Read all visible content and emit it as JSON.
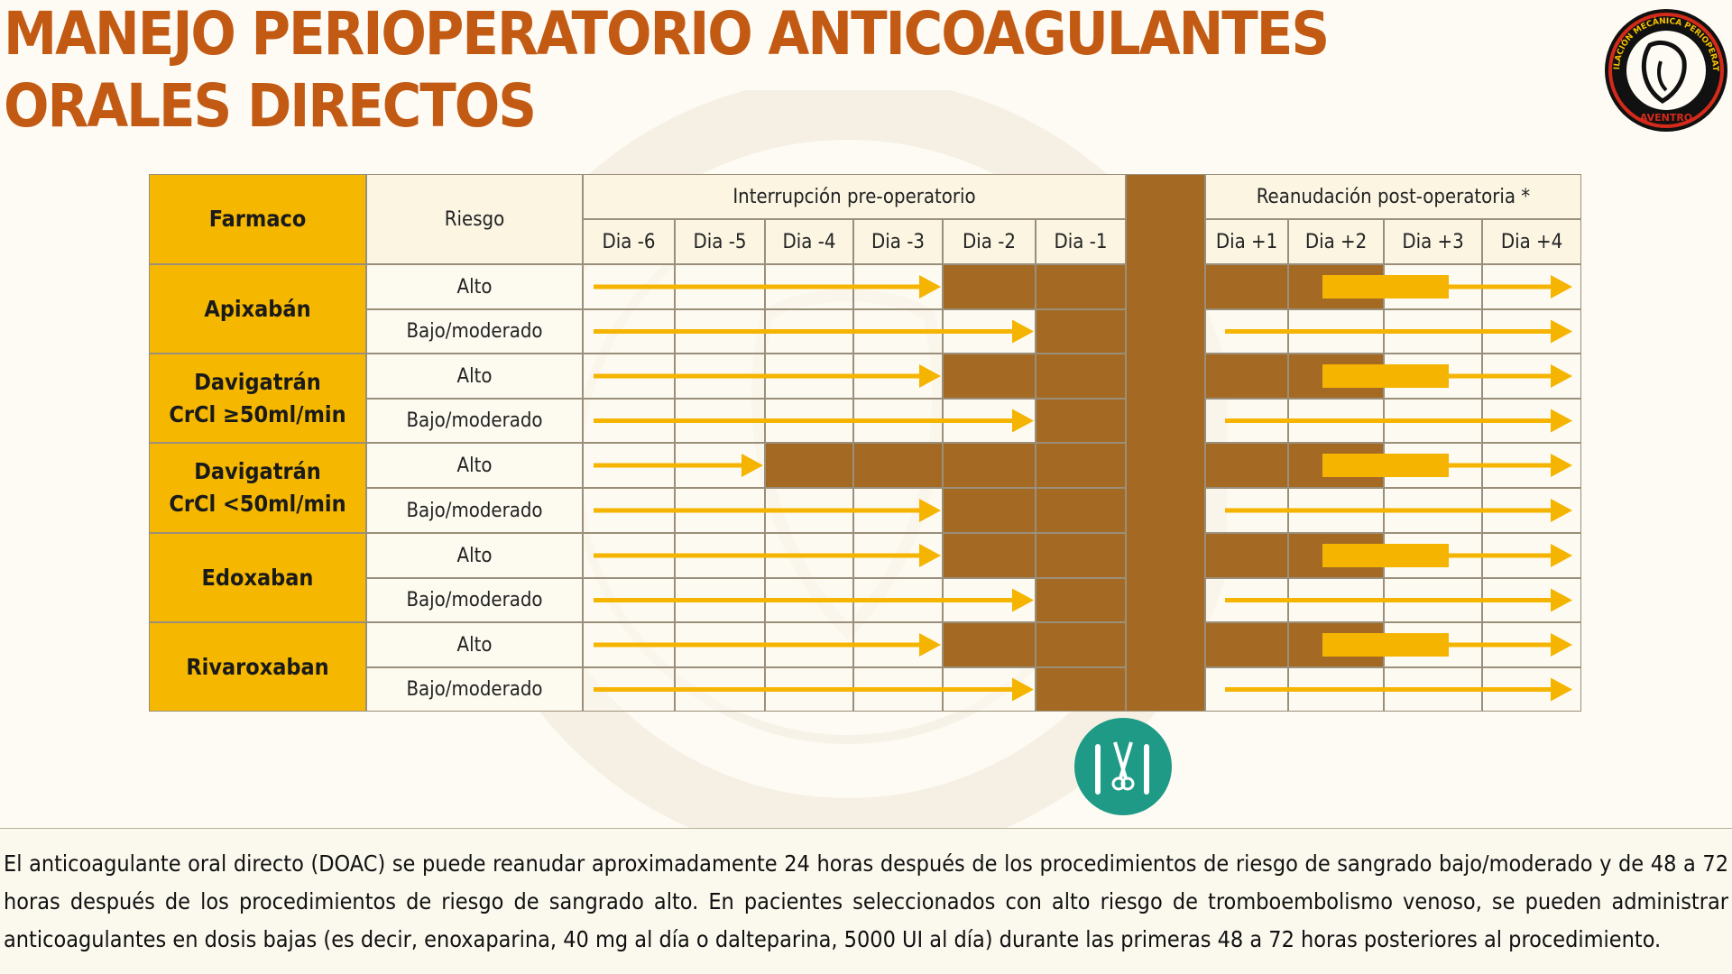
{
  "title": "MANEJO PERIOPERATORIO ANTICOAGULANTES ORALES DIRECTOS",
  "logo": {
    "text_ring": "VENTILACIÓN MECÁNICA PERIOPERATORIA",
    "text_bottom": "AVENTRO",
    "icon": "lungs-head-logo-icon"
  },
  "table": {
    "header": {
      "farmaco": "Farmaco",
      "riesgo": "Riesgo",
      "pre_group": "Interrupción pre-operatorio",
      "post_group": "Reanudación post-operatoria *",
      "pre_days": [
        "Dia -6",
        "Dia -5",
        "Dia -4",
        "Dia -3",
        "Dia -2",
        "Dia -1"
      ],
      "post_days": [
        "Dia +1",
        "Dia +2",
        "Dia +3",
        "Dia +4"
      ]
    },
    "drugs": [
      {
        "name_line1": "Apixabán",
        "name_line2": "",
        "underline_prefix": "",
        "rows": [
          {
            "risk": "Alto",
            "stop_days": 2,
            "resume_delay_days": 2
          },
          {
            "risk": "Bajo/moderado",
            "stop_days": 1,
            "resume_delay_days": 1
          }
        ]
      },
      {
        "name_line1": "Davigatrán",
        "name_line2": "CrCl ≥50ml/min",
        "underline_prefix": "CrCl ",
        "rows": [
          {
            "risk": "Alto",
            "stop_days": 2,
            "resume_delay_days": 2
          },
          {
            "risk": "Bajo/moderado",
            "stop_days": 1,
            "resume_delay_days": 1
          }
        ]
      },
      {
        "name_line1": "Davigatrán",
        "name_line2": "CrCl <50ml/min",
        "underline_prefix": "",
        "rows": [
          {
            "risk": "Alto",
            "stop_days": 4,
            "resume_delay_days": 2
          },
          {
            "risk": "Bajo/moderado",
            "stop_days": 2,
            "resume_delay_days": 1
          }
        ]
      },
      {
        "name_line1": "Edoxaban",
        "name_line2": "",
        "underline_prefix": "",
        "rows": [
          {
            "risk": "Alto",
            "stop_days": 2,
            "resume_delay_days": 2
          },
          {
            "risk": "Bajo/moderado",
            "stop_days": 1,
            "resume_delay_days": 1
          }
        ]
      },
      {
        "name_line1": "Rivaroxaban",
        "name_line2": "",
        "underline_prefix": "",
        "rows": [
          {
            "risk": "Alto",
            "stop_days": 2,
            "resume_delay_days": 2
          },
          {
            "risk": "Bajo/moderado",
            "stop_days": 1,
            "resume_delay_days": 1
          }
        ]
      }
    ]
  },
  "surgery_icon": "surgical-instruments-icon",
  "footnote": "El anticoagulante oral directo (DOAC) se puede reanudar aproximadamente 24 horas después de los procedimientos de riesgo de sangrado bajo/moderado y de 48 a 72 horas después de los procedimientos de riesgo de sangrado alto. En pacientes seleccionados con alto riesgo de tromboembolismo venoso, se pueden administrar anticoagulantes en dosis bajas (es decir, enoxaparina, 40 mg al día o dalteparina, 5000 UI al día) durante las primeras 48 a 72 horas posteriores al procedimiento.",
  "colors": {
    "title": "#c25a14",
    "drug_cell": "#f5b700",
    "hold_period": "#a46a24",
    "arrow": "#f5b400",
    "icon_circle": "#1f9a86"
  }
}
